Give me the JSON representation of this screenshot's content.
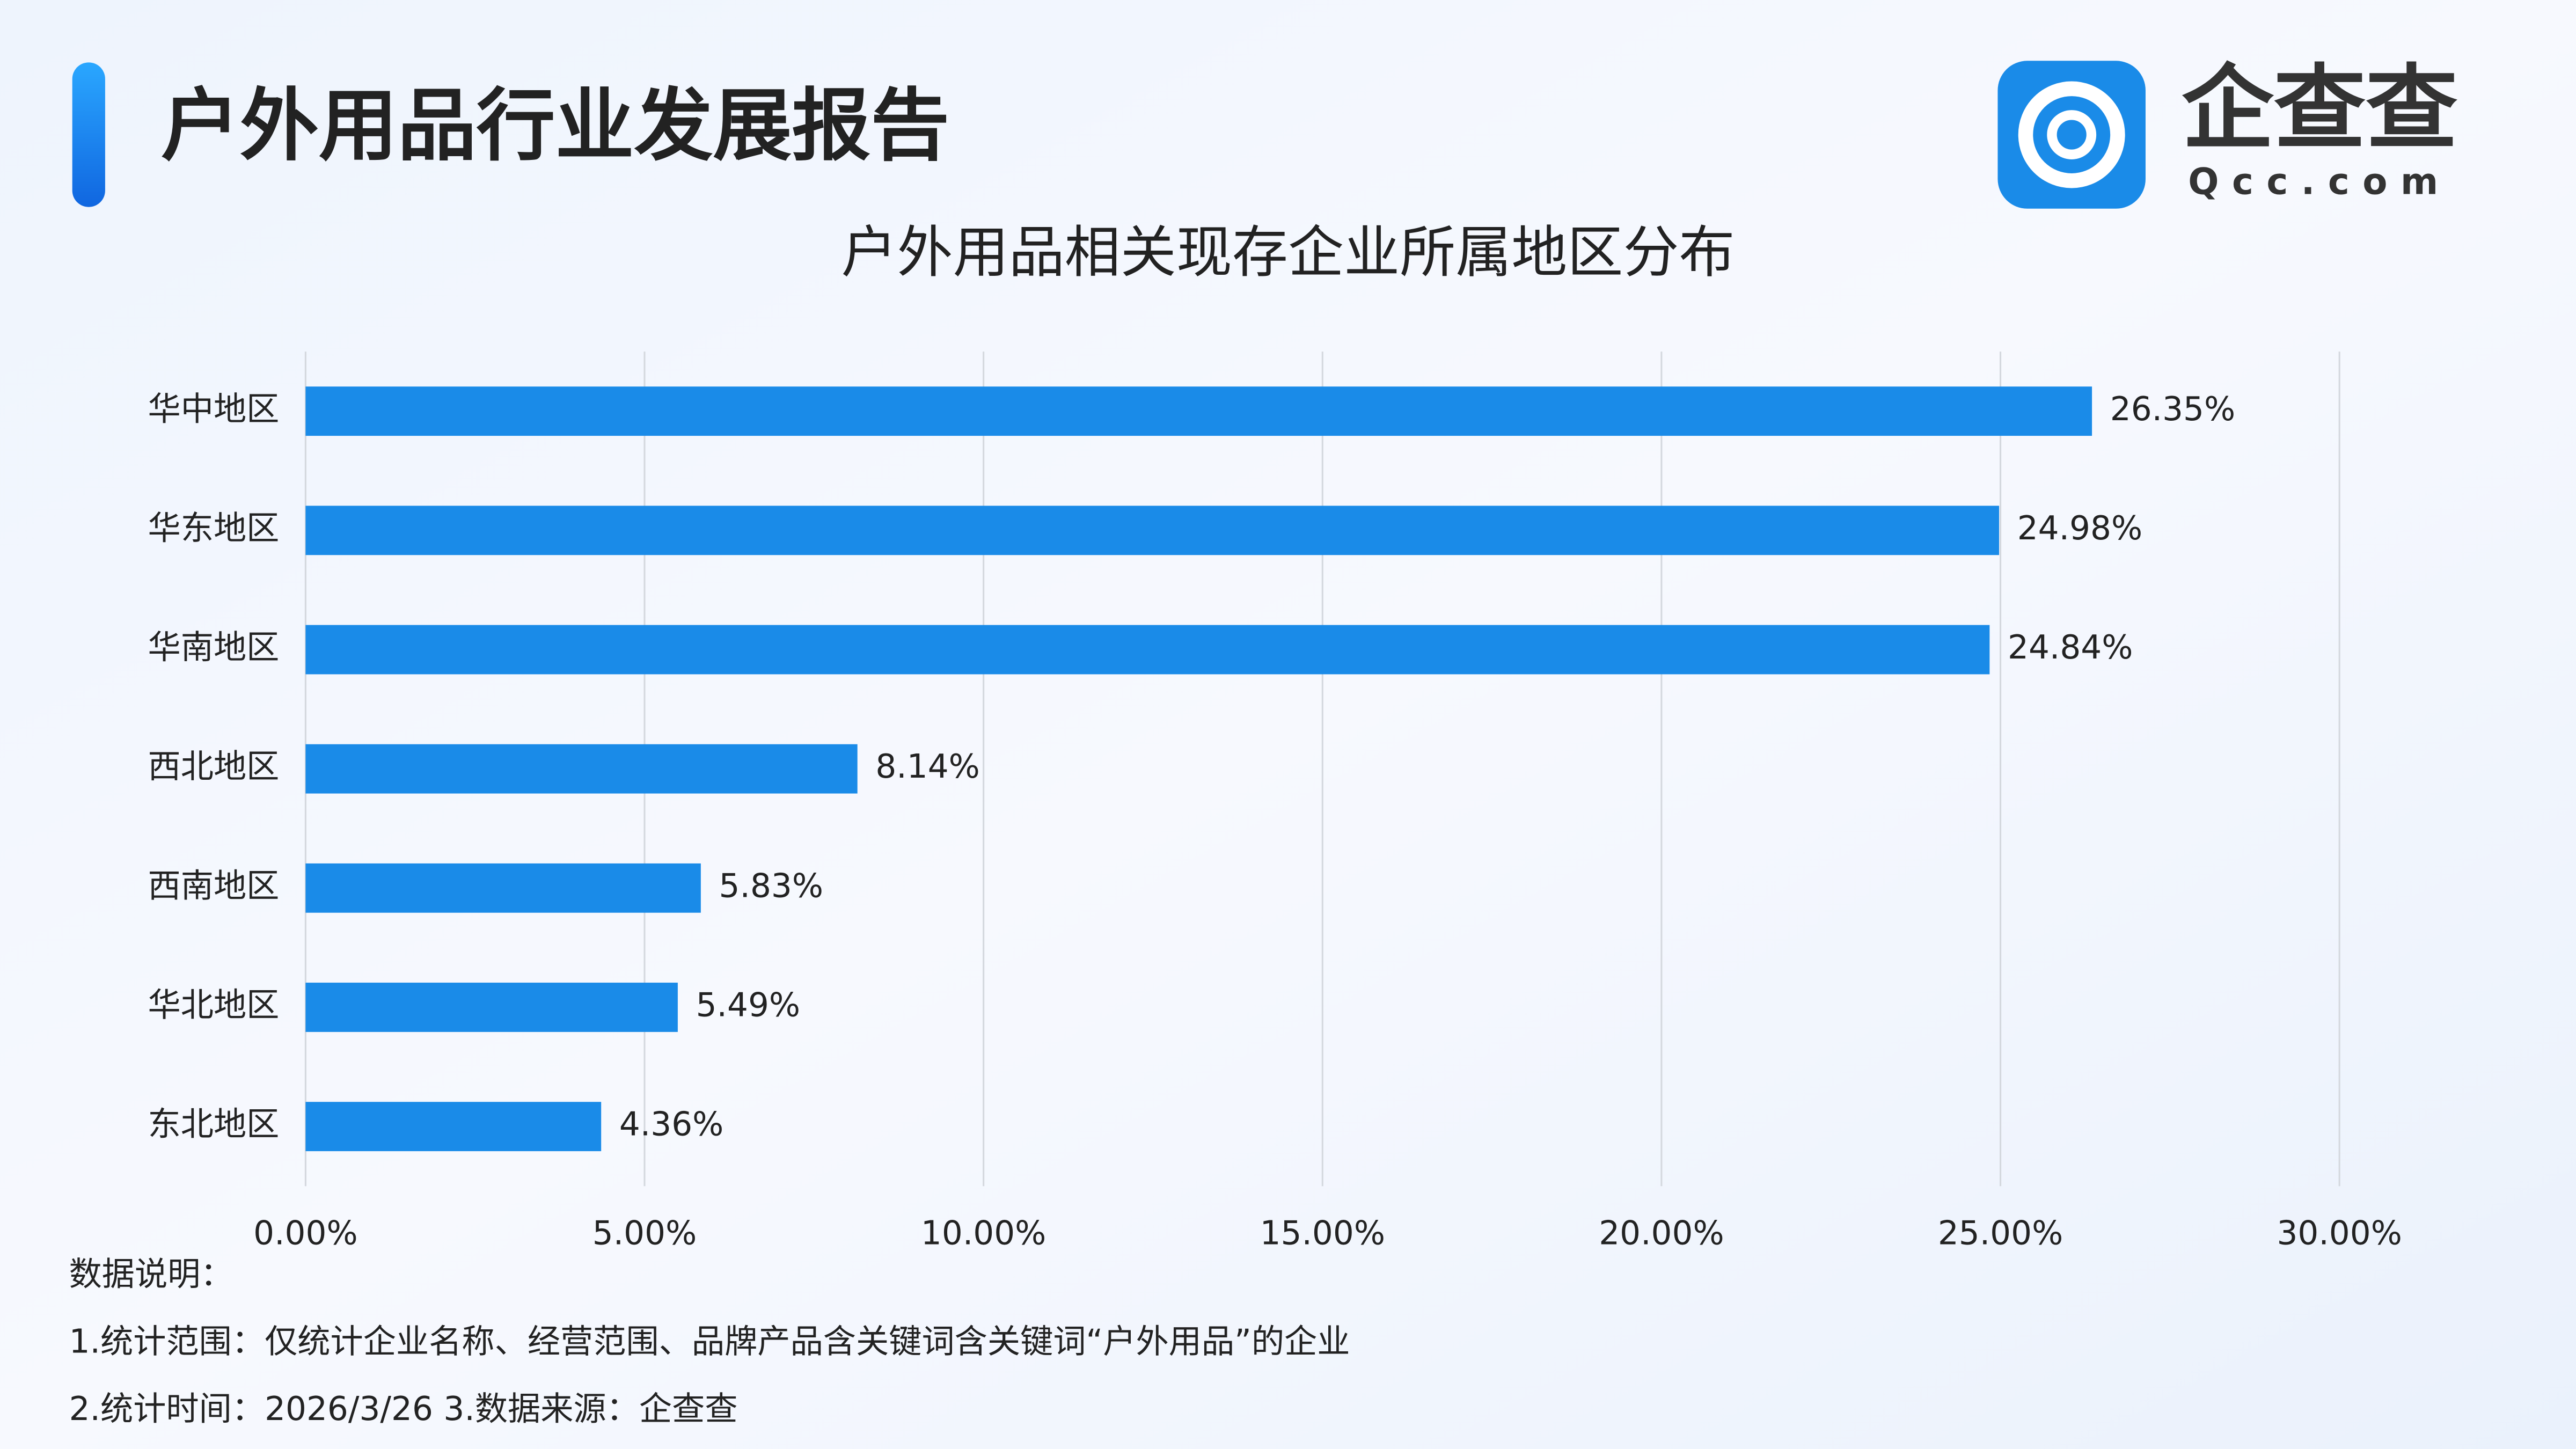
{
  "header": {
    "title": "户外用品行业发展报告",
    "logo_text": "企查查",
    "logo_sub": "Qcc.com"
  },
  "chart_data": {
    "type": "bar",
    "orientation": "horizontal",
    "title": "户外用品相关现存企业所属地区分布",
    "categories": [
      "华中地区",
      "华东地区",
      "华南地区",
      "西北地区",
      "西南地区",
      "华北地区",
      "东北地区"
    ],
    "values": [
      26.35,
      24.98,
      24.84,
      8.14,
      5.83,
      5.49,
      4.36
    ],
    "value_labels": [
      "26.35%",
      "24.98%",
      "24.84%",
      "8.14%",
      "5.83%",
      "5.49%",
      "4.36%"
    ],
    "color": "#1a8be8",
    "xlim": [
      0,
      30
    ],
    "xticks": [
      {
        "value": 0,
        "label": "0.00%"
      },
      {
        "value": 5,
        "label": "5.00%"
      },
      {
        "value": 10,
        "label": "10.00%"
      },
      {
        "value": 15,
        "label": "15.00%"
      },
      {
        "value": 20,
        "label": "20.00%"
      },
      {
        "value": 25,
        "label": "25.00%"
      },
      {
        "value": 30,
        "label": "30.00%"
      }
    ],
    "grid": true
  },
  "notes": {
    "heading": "数据说明：",
    "lines": [
      "1.统计范围：仅统计企业名称、经营范围、品牌产品含关键词含关键词“户外用品”的企业",
      "2.统计时间：2026/3/26  3.数据来源：企查查"
    ]
  }
}
